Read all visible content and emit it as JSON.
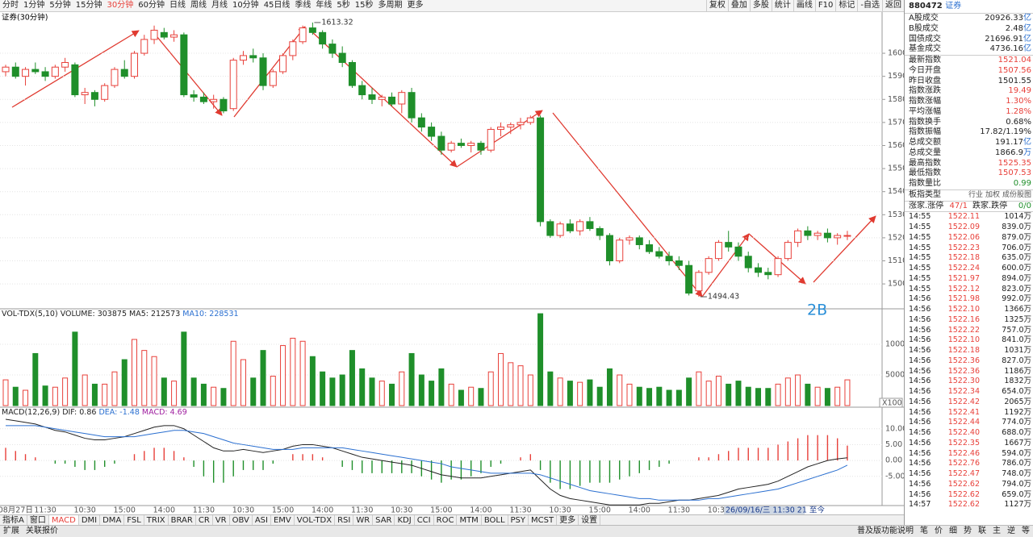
{
  "toolbar": {
    "periods": [
      "分时",
      "1分钟",
      "5分钟",
      "15分钟",
      "30分钟",
      "60分钟",
      "日线",
      "周线",
      "月线",
      "10分钟",
      "45日线",
      "季线",
      "年线",
      "5秒",
      "15秒",
      "多周期",
      "更多"
    ],
    "active": 4,
    "tools": [
      "复权",
      "叠加",
      "多股",
      "统计",
      "画线",
      "F10",
      "标记",
      "-自选",
      "返回"
    ]
  },
  "colors": {
    "up": "#e8403a",
    "down": "#1f8f2a",
    "dea": "#2a6fd0",
    "accent": "#2a8fd8"
  },
  "main_chart": {
    "title": "证券(30分钟)",
    "ylim": [
      1489.2,
      1618.2
    ],
    "yticks": [
      1500,
      1510,
      1520,
      1530,
      1540,
      1550,
      1560,
      1570,
      1580,
      1590,
      1600
    ],
    "candles": [
      [
        1592,
        1595,
        1590,
        1594
      ],
      [
        1594,
        1596,
        1589,
        1590
      ],
      [
        1590,
        1594,
        1586,
        1593
      ],
      [
        1593,
        1596,
        1591,
        1592
      ],
      [
        1592,
        1594,
        1588,
        1590
      ],
      [
        1590,
        1595,
        1589,
        1594
      ],
      [
        1594,
        1598,
        1592,
        1596
      ],
      [
        1595,
        1596,
        1581,
        1582
      ],
      [
        1582,
        1585,
        1578,
        1583
      ],
      [
        1583,
        1584,
        1577,
        1580
      ],
      [
        1580,
        1587,
        1579,
        1586
      ],
      [
        1586,
        1594,
        1585,
        1593
      ],
      [
        1593,
        1597,
        1589,
        1590
      ],
      [
        1590,
        1601,
        1589,
        1600
      ],
      [
        1600,
        1608,
        1599,
        1606
      ],
      [
        1606,
        1612,
        1604,
        1610
      ],
      [
        1609,
        1611,
        1606,
        1607
      ],
      [
        1607,
        1610,
        1605,
        1608
      ],
      [
        1608,
        1609,
        1581,
        1582
      ],
      [
        1582,
        1584,
        1579,
        1581
      ],
      [
        1581,
        1583,
        1578,
        1579
      ],
      [
        1579,
        1582,
        1576,
        1580
      ],
      [
        1580,
        1581,
        1574,
        1575
      ],
      [
        1576,
        1598,
        1575,
        1597
      ],
      [
        1597,
        1601,
        1595,
        1599
      ],
      [
        1599,
        1602,
        1596,
        1598
      ],
      [
        1598,
        1600,
        1584,
        1586
      ],
      [
        1586,
        1593,
        1585,
        1592
      ],
      [
        1592,
        1600,
        1591,
        1599
      ],
      [
        1599,
        1606,
        1597,
        1605
      ],
      [
        1605,
        1612,
        1604,
        1611
      ],
      [
        1611,
        1613.32,
        1608,
        1609
      ],
      [
        1609,
        1610,
        1602,
        1604
      ],
      [
        1604,
        1606,
        1598,
        1600
      ],
      [
        1600,
        1603,
        1594,
        1596
      ],
      [
        1596,
        1597,
        1585,
        1586
      ],
      [
        1586,
        1588,
        1580,
        1582
      ],
      [
        1582,
        1585,
        1578,
        1580
      ],
      [
        1580,
        1582,
        1577,
        1581
      ],
      [
        1581,
        1583,
        1577,
        1578
      ],
      [
        1578,
        1584,
        1574,
        1583
      ],
      [
        1583,
        1585,
        1570,
        1572
      ],
      [
        1572,
        1574,
        1566,
        1568
      ],
      [
        1568,
        1570,
        1562,
        1564
      ],
      [
        1564,
        1566,
        1556,
        1558
      ],
      [
        1558,
        1562,
        1557,
        1561
      ],
      [
        1561,
        1563,
        1559,
        1560
      ],
      [
        1560,
        1562,
        1557,
        1561
      ],
      [
        1561,
        1562,
        1556,
        1558
      ],
      [
        1558,
        1568,
        1557,
        1567
      ],
      [
        1567,
        1570,
        1564,
        1568
      ],
      [
        1568,
        1570,
        1565,
        1569
      ],
      [
        1569,
        1572,
        1567,
        1570
      ],
      [
        1570,
        1573,
        1569,
        1572
      ],
      [
        1572,
        1573,
        1525,
        1527
      ],
      [
        1527,
        1528,
        1520,
        1521
      ],
      [
        1521,
        1527,
        1520,
        1526
      ],
      [
        1526,
        1528,
        1522,
        1523
      ],
      [
        1523,
        1528,
        1521,
        1527
      ],
      [
        1527,
        1529,
        1523,
        1524
      ],
      [
        1524,
        1525,
        1519,
        1521
      ],
      [
        1521,
        1522,
        1508,
        1510
      ],
      [
        1510,
        1520,
        1509,
        1519
      ],
      [
        1519,
        1521,
        1517,
        1520
      ],
      [
        1520,
        1521,
        1515,
        1517
      ],
      [
        1517,
        1519,
        1513,
        1514
      ],
      [
        1514,
        1516,
        1511,
        1512
      ],
      [
        1512,
        1514,
        1508,
        1510
      ],
      [
        1510,
        1512,
        1506,
        1508
      ],
      [
        1508,
        1510,
        1495,
        1496
      ],
      [
        1497,
        1506,
        1494.43,
        1505
      ],
      [
        1505,
        1512,
        1504,
        1511
      ],
      [
        1511,
        1519,
        1510,
        1518
      ],
      [
        1518,
        1523,
        1514,
        1516
      ],
      [
        1516,
        1518,
        1510,
        1512
      ],
      [
        1512,
        1514,
        1505,
        1507
      ],
      [
        1507,
        1509,
        1503,
        1505
      ],
      [
        1505,
        1507,
        1502,
        1504
      ],
      [
        1504,
        1512,
        1503,
        1511
      ],
      [
        1511,
        1519,
        1510,
        1518
      ],
      [
        1518,
        1524,
        1516,
        1523
      ],
      [
        1523,
        1525,
        1519,
        1521
      ],
      [
        1521,
        1523,
        1519,
        1522
      ],
      [
        1522,
        1524,
        1518,
        1520
      ],
      [
        1520,
        1522,
        1517,
        1521
      ],
      [
        1521,
        1523,
        1519,
        1521
      ]
    ],
    "annotations": {
      "high": "1613.32",
      "low": "1494.43",
      "pattern": "2B"
    }
  },
  "volume": {
    "title": "VOL-TDX(5,10)",
    "stats": [
      {
        "text": "VOLUME: 303875",
        "color": "#222"
      },
      {
        "text": "MA5: 212573",
        "color": "#222"
      },
      {
        "text": "MA10: 228531",
        "color": "#2a6fd0"
      }
    ],
    "ylim": [
      0,
      15800
    ],
    "yticks": [
      5000,
      10000
    ],
    "unit": "X100",
    "values": [
      4200,
      3000,
      2500,
      8500,
      3200,
      3000,
      4500,
      12000,
      5000,
      3500,
      3500,
      5500,
      7500,
      10800,
      9000,
      8000,
      4500,
      4000,
      12000,
      4500,
      3500,
      3000,
      2800,
      10500,
      7500,
      4500,
      9000,
      4800,
      9800,
      11000,
      10500,
      8000,
      5500,
      4500,
      5000,
      9000,
      6000,
      4500,
      4000,
      3500,
      5500,
      8500,
      5000,
      4000,
      6000,
      3500,
      2500,
      3000,
      2800,
      5500,
      8500,
      7000,
      6500,
      5000,
      15000,
      5500,
      4500,
      4000,
      3800,
      4200,
      3000,
      6000,
      5000,
      3500,
      3000,
      2800,
      3000,
      2500,
      2500,
      4500,
      5500,
      4000,
      4800,
      3500,
      4000,
      3000,
      2800,
      2800,
      3500,
      4500,
      5000,
      3500,
      3000,
      2800,
      3000,
      4200
    ]
  },
  "macd": {
    "title": "MACD(12,26,9)",
    "stats": [
      {
        "text": "DIF: 0.86",
        "color": "#222"
      },
      {
        "text": "DEA: -1.48",
        "color": "#2a6fd0"
      },
      {
        "text": "MACD: 4.69",
        "color": "#a020a0"
      }
    ],
    "ylim": [
      -14.2,
      16.8
    ],
    "yticks": [
      {
        "value": -5,
        "label": "-5.00"
      },
      {
        "value": 0,
        "label": "0.00"
      },
      {
        "value": 5,
        "label": "5.00"
      },
      {
        "value": 10,
        "label": "10.00"
      }
    ],
    "dif": [
      13,
      12.5,
      12,
      11.5,
      10.5,
      9.5,
      9,
      8,
      7,
      6.5,
      6.5,
      7,
      7.5,
      8.5,
      9.5,
      10.5,
      11,
      11,
      10,
      8,
      6,
      4,
      3,
      3,
      3.5,
      3,
      2.5,
      3,
      3.5,
      4.5,
      5,
      5,
      4.5,
      4,
      3,
      2,
      1,
      0.5,
      0,
      -0.5,
      -1,
      -1.5,
      -2.5,
      -3.5,
      -4.5,
      -5,
      -5.5,
      -5.5,
      -5.5,
      -5,
      -4.5,
      -4,
      -3.5,
      -3,
      -6,
      -9,
      -11,
      -12,
      -12.5,
      -13,
      -13.5,
      -14,
      -14,
      -14,
      -14,
      -13.5,
      -13.5,
      -13,
      -12.5,
      -12.5,
      -12,
      -11.5,
      -11,
      -10,
      -9,
      -8.5,
      -8,
      -7.5,
      -6.5,
      -5,
      -3.5,
      -2,
      -1,
      0,
      0.5,
      0.86
    ],
    "dea": [
      11,
      11,
      11,
      11,
      10.5,
      10,
      9.5,
      9,
      8.5,
      8,
      7.5,
      7.5,
      7.5,
      7.5,
      8,
      8.5,
      9,
      9.5,
      9.5,
      9,
      8.5,
      7.5,
      6.5,
      5.5,
      5,
      4.5,
      4,
      3.5,
      3.5,
      3.5,
      4,
      4,
      4,
      4,
      4,
      3.5,
      3,
      2.5,
      2,
      1.5,
      1,
      0.5,
      0,
      -0.5,
      -1,
      -2,
      -2.5,
      -3,
      -3.5,
      -4,
      -4,
      -4,
      -4,
      -4,
      -4.5,
      -5.5,
      -6.5,
      -7.5,
      -8.5,
      -9.5,
      -10,
      -10.5,
      -11,
      -11.5,
      -12,
      -12,
      -12.5,
      -12.5,
      -12.5,
      -12.5,
      -12.5,
      -12,
      -12,
      -11.5,
      -11,
      -10.5,
      -10,
      -9.5,
      -9,
      -8,
      -7,
      -6,
      -5,
      -4,
      -3,
      -1.48
    ],
    "hist": [
      4,
      3,
      2,
      1,
      0,
      -1,
      -1,
      -2,
      -3,
      -3,
      -2,
      -1,
      0,
      2,
      3,
      4,
      4,
      3,
      1,
      -2,
      -5,
      -7,
      -7,
      -5,
      -3,
      -3,
      -3,
      -1,
      0,
      2,
      2,
      2,
      1,
      0,
      -2,
      -3,
      -4,
      -4,
      -4,
      -4,
      -4,
      -4,
      -5,
      -6,
      -7,
      -6,
      -6,
      -5,
      -4,
      -2,
      -1,
      0,
      1,
      2,
      -3,
      -7,
      -9,
      -9,
      -8,
      -7,
      -7,
      -7,
      -6,
      -5,
      -4,
      -3,
      -2,
      -1,
      0,
      0,
      1,
      1,
      2,
      3,
      4,
      4,
      4,
      4,
      5,
      6,
      7,
      8,
      8,
      8,
      7,
      4.69
    ]
  },
  "time_axis": {
    "labels": [
      null,
      "08月27日",
      null,
      null,
      "11:30",
      null,
      null,
      null,
      "10:30",
      null,
      null,
      null,
      "15:00",
      null,
      null,
      null,
      "14:00",
      null,
      null,
      null,
      "11:30",
      null,
      null,
      null,
      "10:30",
      null,
      null,
      null,
      "15:00",
      null,
      null,
      null,
      "14:00",
      null,
      null,
      null,
      "11:30",
      null,
      null,
      null,
      "10:30",
      null,
      null,
      null,
      "15:00",
      null,
      null,
      null,
      "14:00",
      null,
      null,
      null,
      "11:30",
      null,
      null,
      null,
      "10:30",
      null,
      null,
      null,
      "15:00",
      null,
      null,
      null,
      "14:00",
      null,
      null,
      null,
      "11:30",
      null,
      null,
      null,
      "10:30",
      null,
      null,
      null,
      null,
      null,
      null,
      null,
      null,
      null,
      null,
      null,
      null,
      null
    ],
    "overlay": "26/09/16/三 11:30 21 至今"
  },
  "indicator_tabs": {
    "items": [
      "指标A",
      "窗口",
      "MACD",
      "DMI",
      "DMA",
      "FSL",
      "TRIX",
      "BRAR",
      "CR",
      "VR",
      "OBV",
      "ASI",
      "EMV",
      "VOL-TDX",
      "RSI",
      "WR",
      "SAR",
      "KDJ",
      "CCI",
      "ROC",
      "MTM",
      "BOLL",
      "PSY",
      "MCST",
      "更多",
      "设置"
    ],
    "active": 2
  },
  "status_bar": {
    "left": [
      "扩展",
      "关联报价"
    ],
    "right": [
      "普及版功能说明",
      "笔",
      "价",
      "细",
      "势",
      "联",
      "主",
      "逆",
      "等"
    ]
  },
  "quote_panel": {
    "code": "880472",
    "name": "证券",
    "rows": [
      {
        "label": "A股成交",
        "value": "20926.33",
        "unit": "亿"
      },
      {
        "label": "B股成交",
        "value": "2.48",
        "unit": "亿"
      },
      {
        "label": "国债成交",
        "value": "21696.91",
        "unit": "亿"
      },
      {
        "label": "基金成交",
        "value": "4736.16",
        "unit": "亿"
      },
      {
        "label": "最新指数",
        "value": "1521.04",
        "color": "#e8403a"
      },
      {
        "label": "今日开盘",
        "value": "1507.56",
        "color": "#e8403a"
      },
      {
        "label": "昨日收盘",
        "value": "1501.55"
      },
      {
        "label": "指数涨跌",
        "value": "19.49",
        "color": "#e8403a"
      },
      {
        "label": "指数涨幅",
        "value": "1.30%",
        "color": "#e8403a"
      },
      {
        "label": "平均涨幅",
        "value": "1.28%",
        "color": "#e8403a"
      },
      {
        "label": "指数换手",
        "value": "0.68%"
      },
      {
        "label": "指数振幅",
        "value": "17.82/1.19%"
      },
      {
        "label": "总成交额",
        "value": "191.17",
        "unit": "亿"
      },
      {
        "label": "总成交量",
        "value": "1866.9",
        "unit": "万"
      },
      {
        "label": "最高指数",
        "value": "1525.35",
        "color": "#e8403a"
      },
      {
        "label": "最低指数",
        "value": "1507.53",
        "color": "#e8403a"
      },
      {
        "label": "指数量比",
        "value": "0.99",
        "color": "#1f8f2a"
      }
    ],
    "type_row": {
      "label": "板指类型",
      "links": [
        "行业",
        "加权",
        "成份股图"
      ]
    },
    "breadth": {
      "up_label": "涨家.涨停",
      "up_value": "47/1",
      "down_label": "跌家.跌停",
      "down_value": "0/0"
    },
    "trades": [
      [
        "14:55",
        "1522.11",
        "1014万"
      ],
      [
        "14:55",
        "1522.09",
        "839.0万"
      ],
      [
        "14:55",
        "1522.06",
        "879.0万"
      ],
      [
        "14:55",
        "1522.23",
        "706.0万"
      ],
      [
        "14:55",
        "1522.18",
        "635.0万"
      ],
      [
        "14:55",
        "1522.24",
        "600.0万"
      ],
      [
        "14:55",
        "1521.97",
        "894.0万"
      ],
      [
        "14:55",
        "1522.12",
        "823.0万"
      ],
      [
        "14:56",
        "1521.98",
        "992.0万"
      ],
      [
        "14:56",
        "1522.10",
        "1366万"
      ],
      [
        "14:56",
        "1522.16",
        "1325万"
      ],
      [
        "14:56",
        "1522.22",
        "757.0万"
      ],
      [
        "14:56",
        "1522.10",
        "841.0万"
      ],
      [
        "14:56",
        "1522.18",
        "1031万"
      ],
      [
        "14:56",
        "1522.36",
        "827.0万"
      ],
      [
        "14:56",
        "1522.36",
        "1186万"
      ],
      [
        "14:56",
        "1522.30",
        "1832万"
      ],
      [
        "14:56",
        "1522.34",
        "654.0万"
      ],
      [
        "14:56",
        "1522.42",
        "2065万"
      ],
      [
        "14:56",
        "1522.41",
        "1192万"
      ],
      [
        "14:56",
        "1522.44",
        "774.0万"
      ],
      [
        "14:56",
        "1522.40",
        "688.0万"
      ],
      [
        "14:56",
        "1522.35",
        "1667万"
      ],
      [
        "14:56",
        "1522.46",
        "594.0万"
      ],
      [
        "14:56",
        "1522.76",
        "786.0万"
      ],
      [
        "14:56",
        "1522.47",
        "748.0万"
      ],
      [
        "14:56",
        "1522.62",
        "794.0万"
      ],
      [
        "14:56",
        "1522.62",
        "659.0万"
      ],
      [
        "14:57",
        "1522.62",
        "1127万"
      ]
    ]
  }
}
